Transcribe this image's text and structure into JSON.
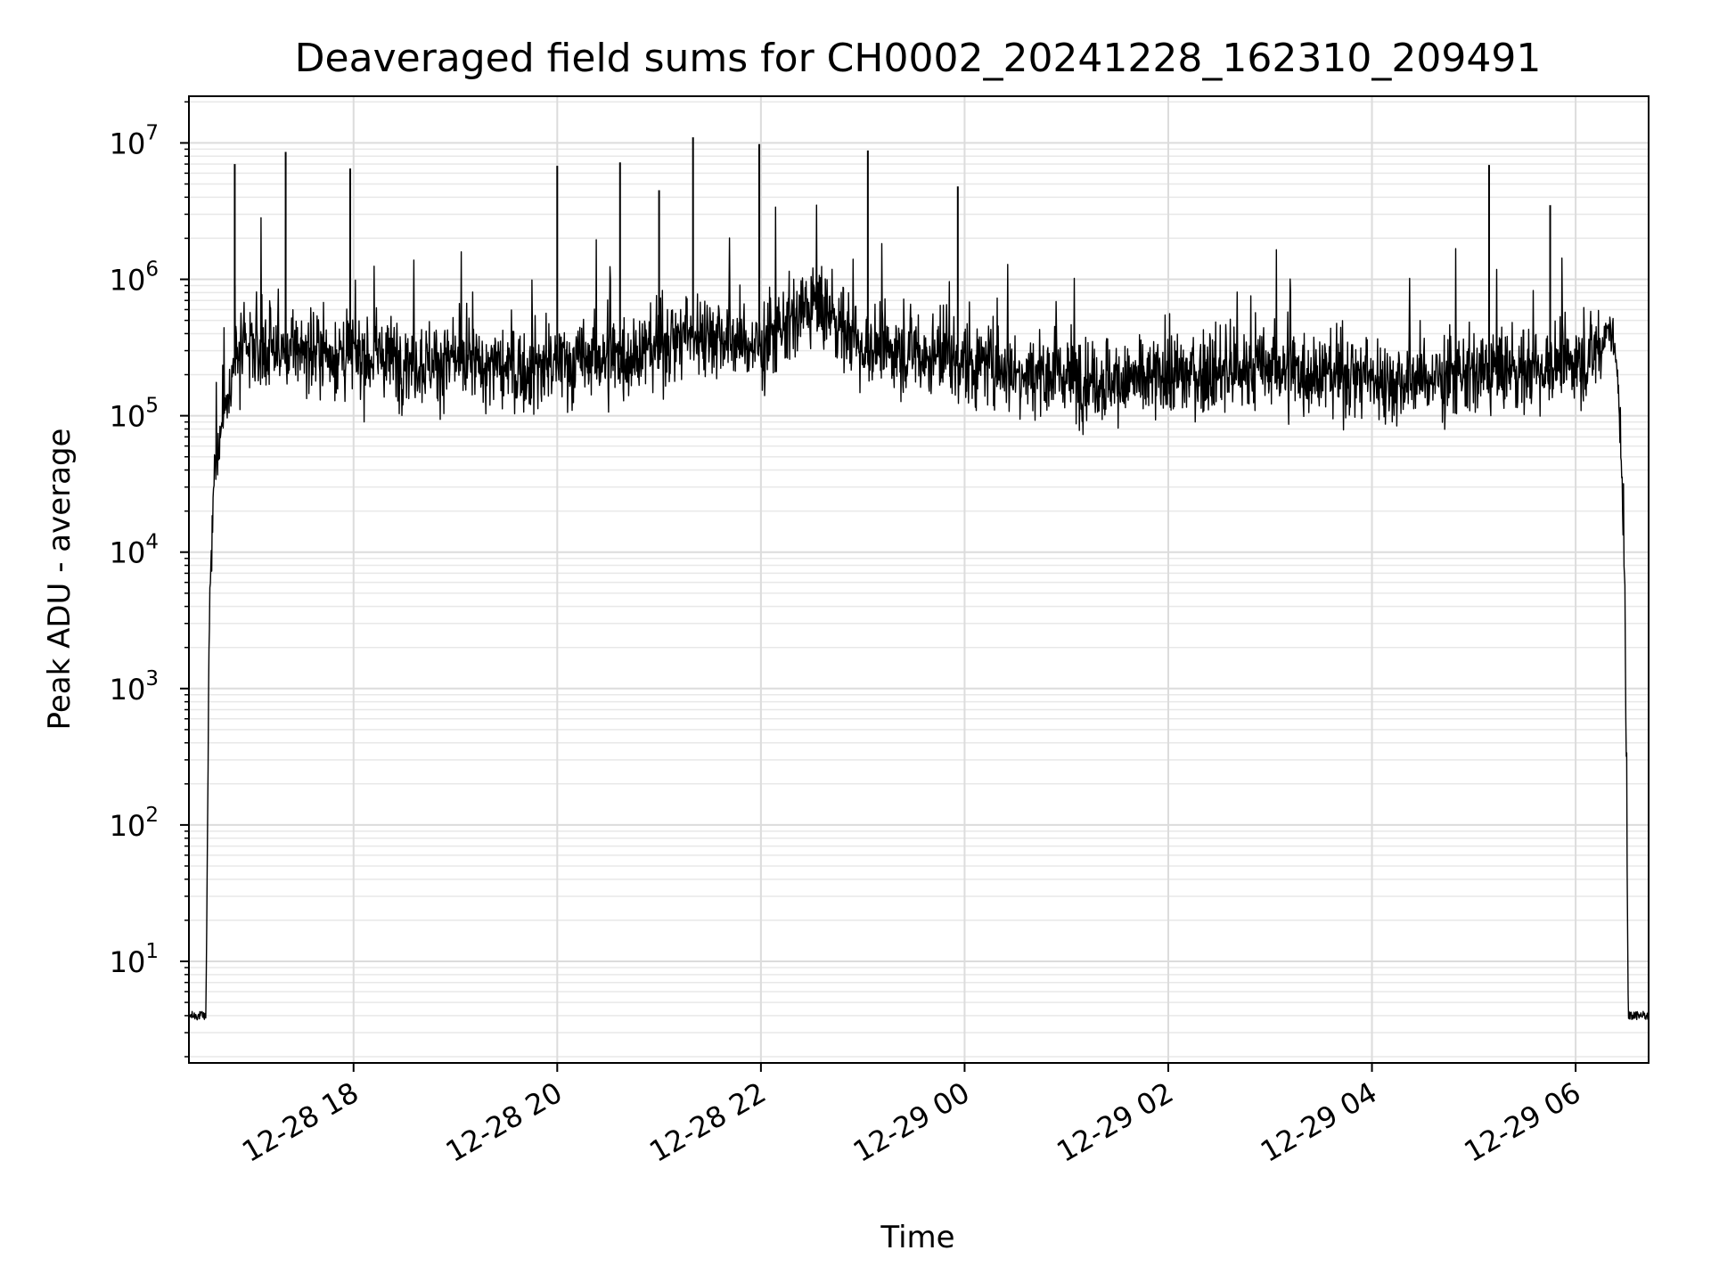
{
  "chart_data": {
    "type": "line",
    "title": "Deaveraged field sums for CH0002_20241228_162310_209491",
    "xlabel": "Time",
    "ylabel": "Peak ADU - average",
    "yscale": "log",
    "ylim": [
      1.8,
      22000000
    ],
    "xlim": [
      "2024-12-28 16:23",
      "2024-12-29 06:43"
    ],
    "grid": true,
    "x_ticks": [
      "2024-12-28 18:00",
      "2024-12-28 20:00",
      "2024-12-28 22:00",
      "2024-12-29 00:00",
      "2024-12-29 02:00",
      "2024-12-29 04:00",
      "2024-12-29 06:00"
    ],
    "x_tick_labels": [
      "12-28 18",
      "12-28 20",
      "12-28 22",
      "12-29 00",
      "12-29 02",
      "12-29 04",
      "12-29 06"
    ],
    "y_ticks": [
      10,
      100,
      1000,
      10000,
      100000,
      1000000,
      10000000
    ],
    "y_tick_labels": [
      {
        "base": "10",
        "exp": "1"
      },
      {
        "base": "10",
        "exp": "2"
      },
      {
        "base": "10",
        "exp": "3"
      },
      {
        "base": "10",
        "exp": "4"
      },
      {
        "base": "10",
        "exp": "5"
      },
      {
        "base": "10",
        "exp": "6"
      },
      {
        "base": "10",
        "exp": "7"
      }
    ],
    "series": [
      {
        "color": "#000000",
        "x": [
          "2024-12-28 16:23",
          "2024-12-28 16:30",
          "2024-12-28 16:33",
          "2024-12-28 16:35",
          "2024-12-28 16:38",
          "2024-12-28 16:42",
          "2024-12-28 16:46",
          "2024-12-28 16:50",
          "2024-12-28 16:54",
          "2024-12-28 17:00",
          "2024-12-28 17:10",
          "2024-12-28 17:20",
          "2024-12-28 17:30",
          "2024-12-28 17:45",
          "2024-12-28 18:00",
          "2024-12-28 18:15",
          "2024-12-28 18:30",
          "2024-12-28 18:45",
          "2024-12-28 19:00",
          "2024-12-28 19:15",
          "2024-12-28 19:30",
          "2024-12-28 19:45",
          "2024-12-28 20:00",
          "2024-12-28 20:15",
          "2024-12-28 20:30",
          "2024-12-28 20:45",
          "2024-12-28 21:00",
          "2024-12-28 21:15",
          "2024-12-28 21:30",
          "2024-12-28 21:45",
          "2024-12-28 22:00",
          "2024-12-28 22:15",
          "2024-12-28 22:30",
          "2024-12-28 22:45",
          "2024-12-28 23:00",
          "2024-12-28 23:15",
          "2024-12-28 23:30",
          "2024-12-28 23:45",
          "2024-12-29 00:00",
          "2024-12-29 00:15",
          "2024-12-29 00:30",
          "2024-12-29 00:45",
          "2024-12-29 01:00",
          "2024-12-29 01:15",
          "2024-12-29 01:30",
          "2024-12-29 01:45",
          "2024-12-29 02:00",
          "2024-12-29 02:15",
          "2024-12-29 02:30",
          "2024-12-29 02:45",
          "2024-12-29 03:00",
          "2024-12-29 03:15",
          "2024-12-29 03:30",
          "2024-12-29 03:45",
          "2024-12-29 04:00",
          "2024-12-29 04:15",
          "2024-12-29 04:30",
          "2024-12-29 04:45",
          "2024-12-29 05:00",
          "2024-12-29 05:15",
          "2024-12-29 05:30",
          "2024-12-29 05:45",
          "2024-12-29 06:00",
          "2024-12-29 06:10",
          "2024-12-29 06:16",
          "2024-12-29 06:20",
          "2024-12-29 06:24",
          "2024-12-29 06:27",
          "2024-12-29 06:29",
          "2024-12-29 06:31",
          "2024-12-29 06:43"
        ],
        "y": [
          4,
          4,
          4,
          3000,
          40000,
          80000,
          150000,
          250000,
          280000,
          300000,
          320000,
          300000,
          310000,
          290000,
          280000,
          270000,
          260000,
          250000,
          240000,
          230000,
          220000,
          230000,
          240000,
          250000,
          270000,
          290000,
          330000,
          380000,
          420000,
          350000,
          320000,
          450000,
          650000,
          500000,
          320000,
          300000,
          290000,
          270000,
          250000,
          230000,
          220000,
          210000,
          200000,
          190000,
          180000,
          180000,
          190000,
          200000,
          210000,
          210000,
          220000,
          220000,
          210000,
          200000,
          190000,
          180000,
          190000,
          190000,
          200000,
          210000,
          220000,
          230000,
          250000,
          260000,
          350000,
          500000,
          250000,
          50000,
          5000,
          4,
          4
        ]
      }
    ],
    "spikes": [
      {
        "x": "2024-12-28 16:50",
        "y": 7000000
      },
      {
        "x": "2024-12-28 17:20",
        "y": 8600000
      },
      {
        "x": "2024-12-28 17:58",
        "y": 6500000
      },
      {
        "x": "2024-12-28 20:00",
        "y": 6800000
      },
      {
        "x": "2024-12-28 20:37",
        "y": 7200000
      },
      {
        "x": "2024-12-28 21:00",
        "y": 4500000
      },
      {
        "x": "2024-12-28 21:20",
        "y": 11000000
      },
      {
        "x": "2024-12-28 21:59",
        "y": 9800000
      },
      {
        "x": "2024-12-28 23:03",
        "y": 8800000
      },
      {
        "x": "2024-12-28 23:56",
        "y": 4800000
      },
      {
        "x": "2024-12-29 05:09",
        "y": 6900000
      },
      {
        "x": "2024-12-29 05:45",
        "y": 3500000
      }
    ]
  }
}
